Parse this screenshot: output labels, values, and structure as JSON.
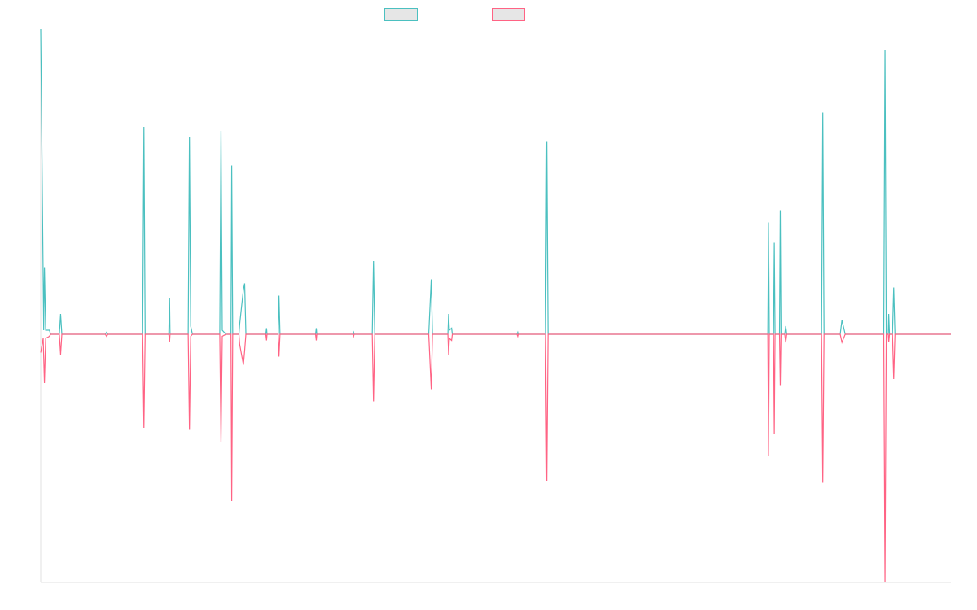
{
  "colors": {
    "series_a": "#4bc0c0",
    "series_b": "#ff6384",
    "legend_fill": "#e6e6e6",
    "axis": "#e0e0e0"
  },
  "chart_data": {
    "type": "line",
    "title": "",
    "xlabel": "",
    "ylabel": "",
    "grid": false,
    "legend": "top-center",
    "x_range": [
      0,
      366
    ],
    "ylim": [
      -1.22,
      1.5
    ],
    "series": [
      {
        "legend_key": "series-a",
        "color": "#4bc0c0",
        "points": [
          [
            0,
            1.5
          ],
          [
            1.2,
            0.02
          ],
          [
            1.5,
            0.33
          ],
          [
            2,
            0.02
          ],
          [
            3.5,
            0.02
          ],
          [
            4,
            0
          ],
          [
            7.5,
            0
          ],
          [
            8,
            0.1
          ],
          [
            8.5,
            0
          ],
          [
            26,
            0
          ],
          [
            26.5,
            0.01
          ],
          [
            27,
            0
          ],
          [
            41,
            0
          ],
          [
            41.5,
            1.02
          ],
          [
            42,
            0
          ],
          [
            51.5,
            0
          ],
          [
            51.8,
            0.18
          ],
          [
            52,
            0
          ],
          [
            59.3,
            0
          ],
          [
            59.8,
            0.97
          ],
          [
            60.3,
            0.04
          ],
          [
            61,
            0
          ],
          [
            72,
            0
          ],
          [
            72.5,
            1.0
          ],
          [
            73,
            0.02
          ],
          [
            74.5,
            0
          ],
          [
            76.5,
            0
          ],
          [
            76.8,
            0.83
          ],
          [
            77.2,
            0
          ],
          [
            79.7,
            0
          ],
          [
            80,
            0.05
          ],
          [
            81.5,
            0.22
          ],
          [
            82,
            0.25
          ],
          [
            82.5,
            0
          ],
          [
            90.5,
            0
          ],
          [
            90.8,
            0.03
          ],
          [
            91,
            0
          ],
          [
            95.5,
            0
          ],
          [
            95.8,
            0.19
          ],
          [
            96.2,
            0
          ],
          [
            110.5,
            0
          ],
          [
            110.8,
            0.03
          ],
          [
            111,
            0
          ],
          [
            125.5,
            0
          ],
          [
            125.8,
            0.01
          ],
          [
            126,
            0
          ],
          [
            133.3,
            0
          ],
          [
            133.8,
            0.36
          ],
          [
            134.3,
            0
          ],
          [
            156,
            0
          ],
          [
            157,
            0.27
          ],
          [
            157.5,
            0
          ],
          [
            163.7,
            0
          ],
          [
            164,
            0.1
          ],
          [
            164.3,
            0.02
          ],
          [
            165.2,
            0.03
          ],
          [
            165.5,
            0
          ],
          [
            191.5,
            0
          ],
          [
            191.8,
            0.01
          ],
          [
            192,
            0
          ],
          [
            203,
            0
          ],
          [
            203.5,
            0.95
          ],
          [
            204,
            0
          ],
          [
            292.4,
            0
          ],
          [
            292.7,
            0.55
          ],
          [
            293,
            0
          ],
          [
            294.7,
            0
          ],
          [
            295,
            0.45
          ],
          [
            295.3,
            0
          ],
          [
            297.1,
            0
          ],
          [
            297.4,
            0.61
          ],
          [
            297.7,
            0
          ],
          [
            299.2,
            0
          ],
          [
            299.6,
            0.04
          ],
          [
            300,
            0
          ],
          [
            314,
            0
          ],
          [
            314.5,
            1.09
          ],
          [
            315,
            0
          ],
          [
            321.5,
            0
          ],
          [
            322.2,
            0.07
          ],
          [
            323.5,
            0
          ],
          [
            339,
            0
          ],
          [
            339.5,
            1.4
          ],
          [
            340,
            0
          ],
          [
            340.8,
            0
          ],
          [
            341,
            0.1
          ],
          [
            341.3,
            0
          ],
          [
            342.5,
            0
          ],
          [
            343,
            0.23
          ],
          [
            343.5,
            0
          ],
          [
            366,
            0
          ]
        ]
      },
      {
        "legend_key": "series-b",
        "color": "#ff6384",
        "points": [
          [
            0,
            -0.09
          ],
          [
            1,
            -0.02
          ],
          [
            1.5,
            -0.24
          ],
          [
            2,
            -0.02
          ],
          [
            3.5,
            -0.01
          ],
          [
            4,
            0
          ],
          [
            7.5,
            0
          ],
          [
            8,
            -0.1
          ],
          [
            8.5,
            0
          ],
          [
            26,
            0
          ],
          [
            26.5,
            -0.01
          ],
          [
            27,
            0
          ],
          [
            41,
            0
          ],
          [
            41.5,
            -0.46
          ],
          [
            42,
            0
          ],
          [
            51.5,
            0
          ],
          [
            51.8,
            -0.04
          ],
          [
            52,
            0
          ],
          [
            59.3,
            0
          ],
          [
            59.8,
            -0.47
          ],
          [
            60.3,
            -0.01
          ],
          [
            61,
            0
          ],
          [
            72,
            0
          ],
          [
            72.5,
            -0.53
          ],
          [
            73,
            -0.01
          ],
          [
            74.5,
            0
          ],
          [
            76.5,
            0
          ],
          [
            76.8,
            -0.82
          ],
          [
            77.2,
            0
          ],
          [
            79.7,
            0
          ],
          [
            80,
            -0.05
          ],
          [
            81.5,
            -0.15
          ],
          [
            82,
            -0.08
          ],
          [
            82.5,
            0
          ],
          [
            90.5,
            0
          ],
          [
            90.8,
            -0.03
          ],
          [
            91,
            0
          ],
          [
            95.5,
            0
          ],
          [
            95.8,
            -0.11
          ],
          [
            96.2,
            0
          ],
          [
            110.5,
            0
          ],
          [
            110.8,
            -0.03
          ],
          [
            111,
            0
          ],
          [
            125.5,
            0
          ],
          [
            125.8,
            -0.01
          ],
          [
            126,
            0
          ],
          [
            133.3,
            0
          ],
          [
            133.8,
            -0.33
          ],
          [
            134.3,
            0
          ],
          [
            156,
            0
          ],
          [
            157,
            -0.27
          ],
          [
            157.5,
            0
          ],
          [
            163.7,
            0
          ],
          [
            164,
            -0.1
          ],
          [
            164.3,
            -0.02
          ],
          [
            165.2,
            -0.03
          ],
          [
            165.5,
            0
          ],
          [
            191.5,
            0
          ],
          [
            191.8,
            -0.01
          ],
          [
            192,
            0
          ],
          [
            203,
            0
          ],
          [
            203.5,
            -0.72
          ],
          [
            204,
            0
          ],
          [
            292.4,
            0
          ],
          [
            292.7,
            -0.6
          ],
          [
            293,
            0
          ],
          [
            294.7,
            0
          ],
          [
            295,
            -0.49
          ],
          [
            295.3,
            0
          ],
          [
            297.1,
            0
          ],
          [
            297.4,
            -0.25
          ],
          [
            297.7,
            0
          ],
          [
            299.2,
            0
          ],
          [
            299.6,
            -0.04
          ],
          [
            300,
            0
          ],
          [
            314,
            0
          ],
          [
            314.5,
            -0.73
          ],
          [
            315,
            0
          ],
          [
            321.5,
            0
          ],
          [
            322.2,
            -0.04
          ],
          [
            323.5,
            0
          ],
          [
            339,
            0
          ],
          [
            339.5,
            -1.22
          ],
          [
            340,
            0
          ],
          [
            340.8,
            0
          ],
          [
            341,
            -0.04
          ],
          [
            341.3,
            0
          ],
          [
            342.5,
            0
          ],
          [
            343,
            -0.22
          ],
          [
            343.5,
            0
          ],
          [
            366,
            0
          ]
        ]
      }
    ]
  }
}
